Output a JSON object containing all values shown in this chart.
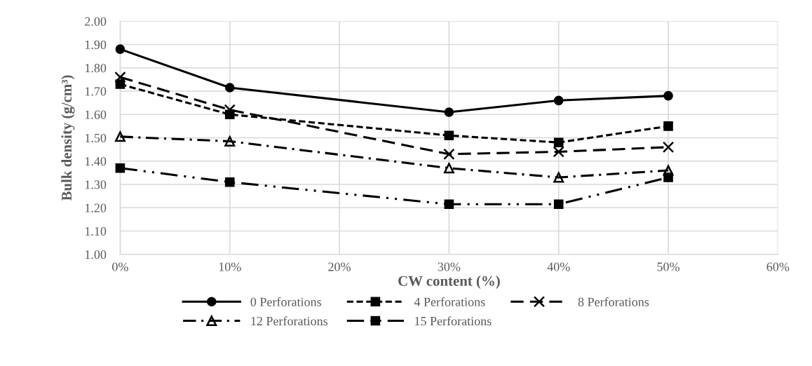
{
  "chart_data": {
    "type": "line",
    "xlabel": "CW content (%)",
    "ylabel": "Bulk density (g/cm³)",
    "x": [
      0,
      10,
      30,
      40,
      50
    ],
    "series": [
      {
        "name": "0 Perforations",
        "color": "#000000",
        "marker": "circle",
        "line_style": "solid",
        "values": [
          1.88,
          1.715,
          1.61,
          1.66,
          1.68
        ]
      },
      {
        "name": "4 Perforations",
        "color": "#000000",
        "marker": "square",
        "line_style": "dashed",
        "values": [
          1.73,
          1.6,
          1.51,
          1.48,
          1.55
        ]
      },
      {
        "name": "8 Perforations",
        "color": "#000000",
        "marker": "cross",
        "line_style": "longdash",
        "values": [
          1.76,
          1.62,
          1.43,
          1.44,
          1.46
        ]
      },
      {
        "name": "12 Perforations",
        "color": "#000000",
        "marker": "triangle",
        "line_style": "dashdot",
        "values": [
          1.505,
          1.485,
          1.37,
          1.33,
          1.36
        ]
      },
      {
        "name": "15 Perforations",
        "color": "#000000",
        "marker": "square",
        "line_style": "dashdotdot",
        "values": [
          1.37,
          1.31,
          1.215,
          1.215,
          1.33
        ]
      }
    ],
    "xlim": [
      0,
      60
    ],
    "xticks": [
      {
        "value": 0,
        "label": "0%"
      },
      {
        "value": 10,
        "label": "10%"
      },
      {
        "value": 20,
        "label": "20%"
      },
      {
        "value": 30,
        "label": "30%"
      },
      {
        "value": 40,
        "label": "40%"
      },
      {
        "value": 50,
        "label": "50%"
      },
      {
        "value": 60,
        "label": "60%"
      }
    ],
    "ylim": [
      1.0,
      2.0
    ],
    "yticks": [
      {
        "value": 1.0,
        "label": "1.00"
      },
      {
        "value": 1.1,
        "label": "1.10"
      },
      {
        "value": 1.2,
        "label": "1.20"
      },
      {
        "value": 1.3,
        "label": "1.30"
      },
      {
        "value": 1.4,
        "label": "1.40"
      },
      {
        "value": 1.5,
        "label": "1.50"
      },
      {
        "value": 1.6,
        "label": "1.60"
      },
      {
        "value": 1.7,
        "label": "1.70"
      },
      {
        "value": 1.8,
        "label": "1.80"
      },
      {
        "value": 1.9,
        "label": "1.90"
      },
      {
        "value": 2.0,
        "label": "2.00"
      }
    ],
    "grid": true,
    "legend": "bottom"
  }
}
